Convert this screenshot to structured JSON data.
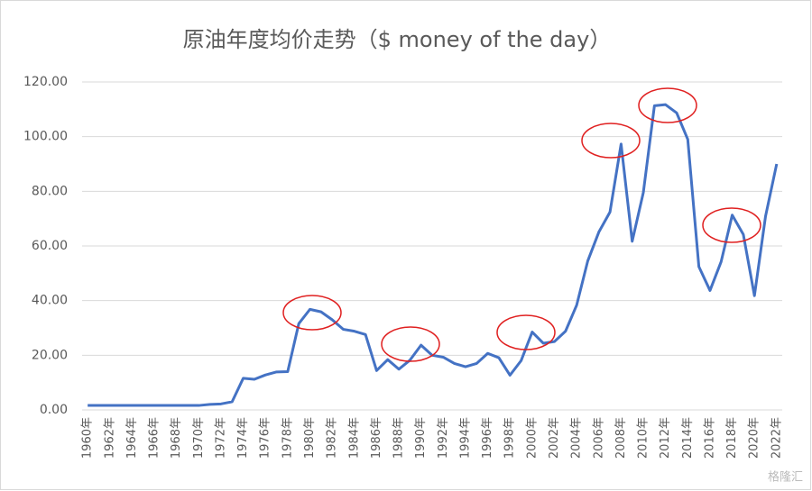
{
  "chart_data": {
    "type": "line",
    "title": "原油年度均价走势（$ money of the day）",
    "categories": [
      "1960年",
      null,
      "1962年",
      null,
      "1964年",
      null,
      "1966年",
      null,
      "1968年",
      null,
      "1970年",
      null,
      "1972年",
      null,
      "1974年",
      null,
      "1976年",
      null,
      "1978年",
      null,
      "1980年",
      null,
      "1982年",
      null,
      "1984年",
      null,
      "1986年",
      null,
      "1988年",
      null,
      "1990年",
      null,
      "1992年",
      null,
      "1994年",
      null,
      "1996年",
      null,
      "1998年",
      null,
      "2000年",
      null,
      "2002年",
      null,
      "2004年",
      null,
      "2006年",
      null,
      "2008年",
      null,
      "2010年",
      null,
      "2012年",
      null,
      "2014年",
      null,
      "2016年",
      null,
      "2018年",
      null,
      "2020年",
      null,
      "2022年"
    ],
    "values": [
      1.63,
      1.63,
      1.63,
      1.63,
      1.63,
      1.63,
      1.63,
      1.63,
      1.63,
      1.63,
      1.63,
      2.0,
      2.2,
      3.0,
      11.58,
      11.2,
      12.8,
      13.9,
      14.0,
      31.6,
      36.8,
      35.9,
      33.0,
      29.5,
      28.8,
      27.6,
      14.4,
      18.4,
      14.9,
      18.2,
      23.7,
      20.0,
      19.3,
      17.0,
      15.8,
      17.0,
      20.7,
      19.1,
      12.7,
      18.0,
      28.5,
      24.4,
      25.0,
      28.8,
      38.3,
      54.5,
      65.1,
      72.4,
      97.3,
      61.7,
      79.5,
      111.3,
      111.7,
      108.7,
      99.0,
      52.4,
      43.7,
      54.2,
      71.3,
      64.2,
      41.8,
      70.9,
      90.0
    ],
    "color": "#4472c4",
    "ylim": [
      0,
      120
    ],
    "yticks": [
      {
        "value": 0,
        "label": "0.00"
      },
      {
        "value": 20,
        "label": "20.00"
      },
      {
        "value": 40,
        "label": "40.00"
      },
      {
        "value": 60,
        "label": "60.00"
      },
      {
        "value": 80,
        "label": "80.00"
      },
      {
        "value": 100,
        "label": "100.00"
      },
      {
        "value": 120,
        "label": "120.00"
      }
    ],
    "grid": true
  },
  "watermark": "格隆汇"
}
